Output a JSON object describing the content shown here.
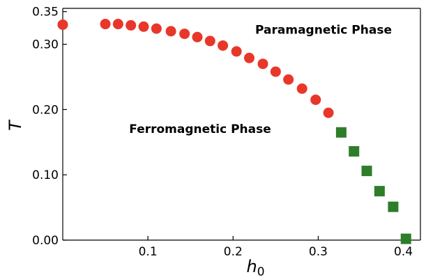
{
  "chart_data": {
    "type": "scatter",
    "title": "",
    "xlabel": "h",
    "xlabel_sub": "0",
    "ylabel": "T",
    "xlim": [
      0.0,
      0.42
    ],
    "ylim": [
      0.0,
      0.355
    ],
    "xticks": [
      {
        "value": 0.1,
        "label": "0.1"
      },
      {
        "value": 0.2,
        "label": "0.2"
      },
      {
        "value": 0.3,
        "label": "0.3"
      },
      {
        "value": 0.4,
        "label": "0.4"
      }
    ],
    "yticks": [
      {
        "value": 0.0,
        "label": "0.00"
      },
      {
        "value": 0.1,
        "label": "0.10"
      },
      {
        "value": 0.2,
        "label": "0.20"
      },
      {
        "value": 0.3,
        "label": "0.30"
      },
      {
        "value": 0.35,
        "label": "0.35"
      }
    ],
    "grid": false,
    "annotations": [
      {
        "text": "Paramagnetic Phase",
        "x": 0.226,
        "y": 0.316
      },
      {
        "text": "Ferromagnetic Phase",
        "x": 0.078,
        "y": 0.164
      }
    ],
    "series": [
      {
        "marker": "circle",
        "color": "#e8372a",
        "points": [
          [
            0.0,
            0.33
          ],
          [
            0.05,
            0.331
          ],
          [
            0.065,
            0.331
          ],
          [
            0.08,
            0.329
          ],
          [
            0.095,
            0.327
          ],
          [
            0.11,
            0.324
          ],
          [
            0.127,
            0.32
          ],
          [
            0.143,
            0.316
          ],
          [
            0.158,
            0.311
          ],
          [
            0.173,
            0.305
          ],
          [
            0.188,
            0.298
          ],
          [
            0.204,
            0.289
          ],
          [
            0.219,
            0.279
          ],
          [
            0.235,
            0.27
          ],
          [
            0.25,
            0.258
          ],
          [
            0.265,
            0.246
          ],
          [
            0.281,
            0.232
          ],
          [
            0.297,
            0.215
          ],
          [
            0.312,
            0.195
          ]
        ]
      },
      {
        "marker": "square",
        "color": "#2e7d2a",
        "points": [
          [
            0.327,
            0.165
          ],
          [
            0.342,
            0.136
          ],
          [
            0.357,
            0.106
          ],
          [
            0.372,
            0.075
          ],
          [
            0.388,
            0.051
          ],
          [
            0.403,
            0.002
          ]
        ]
      }
    ]
  }
}
